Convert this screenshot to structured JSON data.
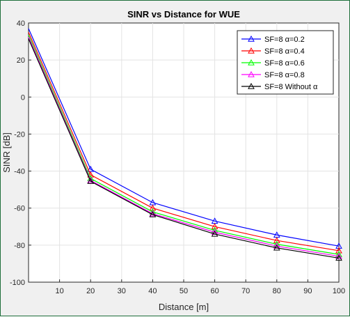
{
  "chart_data": {
    "type": "line",
    "title": "SINR vs Distance for WUE",
    "xlabel": "Distance [m]",
    "ylabel": "SINR [dB]",
    "xlim": [
      0,
      100
    ],
    "ylim": [
      -100,
      40
    ],
    "x_ticks": [
      10,
      20,
      30,
      40,
      50,
      60,
      70,
      80,
      90,
      100
    ],
    "y_ticks": [
      40,
      20,
      0,
      -20,
      -40,
      -60,
      -80,
      -100
    ],
    "grid": true,
    "legend_position": "top-right",
    "marker": "triangle",
    "x": [
      0,
      20,
      40,
      60,
      80,
      100
    ],
    "series": [
      {
        "name": "SF=8 α=0.2",
        "color": "#0000ff",
        "values": [
          37,
          -39,
          -57,
          -67,
          -74.5,
          -80.5
        ]
      },
      {
        "name": "SF=8 α=0.4",
        "color": "#ff0000",
        "values": [
          35,
          -42,
          -60,
          -70,
          -77.5,
          -83
        ]
      },
      {
        "name": "SF=8 α=0.6",
        "color": "#00ff00",
        "values": [
          33.5,
          -44,
          -62,
          -72,
          -79.5,
          -85
        ]
      },
      {
        "name": "SF=8 α=0.8",
        "color": "#ff00ff",
        "values": [
          32.5,
          -45,
          -63,
          -73,
          -80.5,
          -86
        ]
      },
      {
        "name": "SF=8 Without α",
        "color": "#000000",
        "values": [
          31.5,
          -45.5,
          -63.5,
          -74,
          -81.5,
          -87
        ]
      }
    ]
  }
}
